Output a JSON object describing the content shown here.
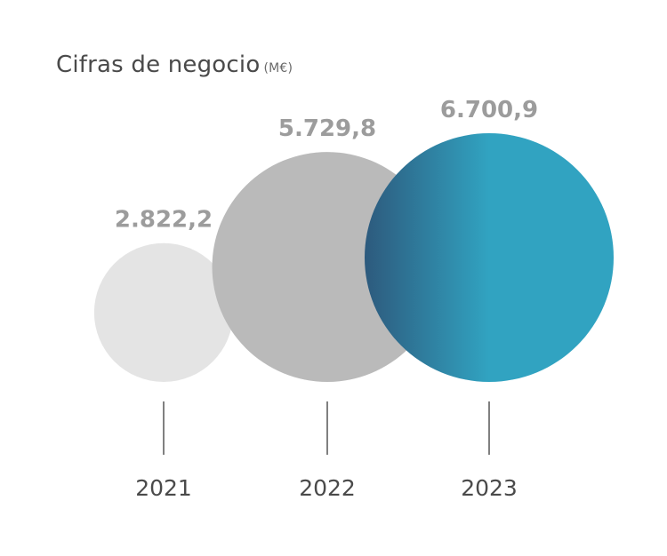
{
  "chart_data": {
    "type": "bubble",
    "title": "Cifras de negocio",
    "unit": "(M€)",
    "categories": [
      "2021",
      "2022",
      "2023"
    ],
    "values": [
      2822.2,
      5729.8,
      6700.9
    ],
    "value_labels": [
      "2.822,2",
      "5.729,8",
      "6.700,9"
    ],
    "colors": [
      "#e4e4e4",
      "#bababa",
      "#31a3c1"
    ],
    "gradient_dark": "#2d5a7d"
  }
}
